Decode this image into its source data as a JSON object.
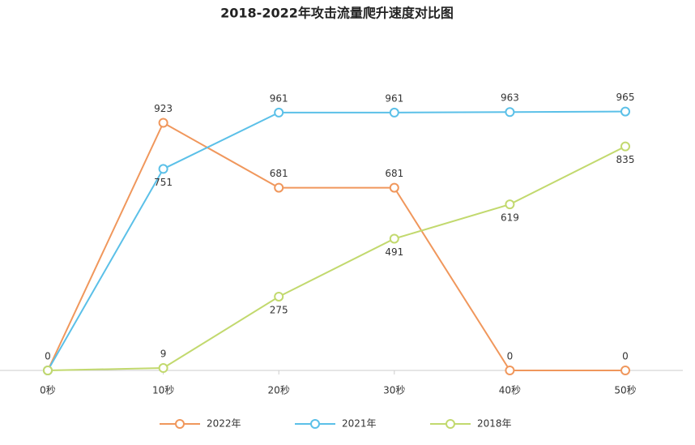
{
  "chart_data": {
    "type": "line",
    "title": "2018-2022年攻击流量爬升速度对比图",
    "categories": [
      "0秒",
      "10秒",
      "20秒",
      "30秒",
      "40秒",
      "50秒"
    ],
    "series": [
      {
        "name": "2022年",
        "color": "#f0975c",
        "values": [
          0,
          923,
          681,
          681,
          0,
          0
        ]
      },
      {
        "name": "2021年",
        "color": "#5bc0e8",
        "values": [
          0,
          751,
          961,
          961,
          963,
          965
        ]
      },
      {
        "name": "2018年",
        "color": "#c2d96e",
        "values": [
          0,
          9,
          275,
          491,
          619,
          835
        ]
      }
    ],
    "ylim": [
      0,
      1000
    ]
  }
}
